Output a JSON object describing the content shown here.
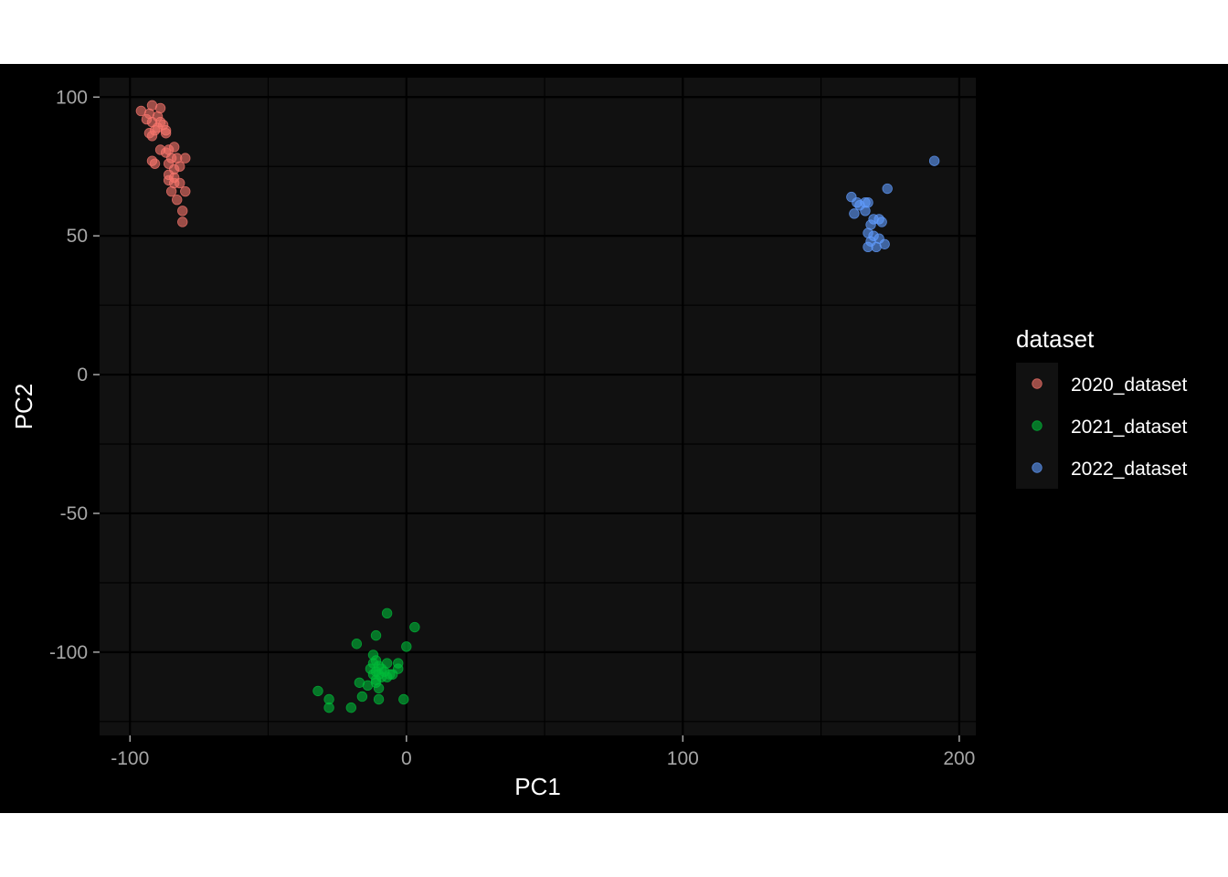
{
  "chart_data": {
    "type": "scatter",
    "title": "",
    "xlabel": "PC1",
    "ylabel": "PC2",
    "xlim": [
      -111,
      206
    ],
    "ylim": [
      -130,
      107
    ],
    "x_ticks": [
      -100,
      0,
      100,
      200
    ],
    "x_tick_labels": [
      "-100",
      "0",
      "100",
      "200"
    ],
    "y_ticks": [
      -100,
      -50,
      0,
      50,
      100
    ],
    "y_tick_labels": [
      "-100",
      "-50",
      "0",
      "50",
      "100"
    ],
    "grid": true,
    "background": "#111111",
    "legend": {
      "title": "dataset",
      "position": "right"
    },
    "series": [
      {
        "name": "2020_dataset",
        "color": "#f8766d",
        "points": [
          [
            -92,
            97
          ],
          [
            -89,
            96
          ],
          [
            -96,
            95
          ],
          [
            -93,
            94
          ],
          [
            -90,
            93
          ],
          [
            -94,
            92
          ],
          [
            -92,
            91
          ],
          [
            -89,
            91
          ],
          [
            -88,
            90
          ],
          [
            -90,
            89
          ],
          [
            -87,
            88
          ],
          [
            -91,
            88
          ],
          [
            -93,
            87
          ],
          [
            -87,
            87
          ],
          [
            -92,
            86
          ],
          [
            -89,
            81
          ],
          [
            -84,
            82
          ],
          [
            -86,
            81
          ],
          [
            -87,
            80
          ],
          [
            -85,
            78
          ],
          [
            -83,
            78
          ],
          [
            -80,
            78
          ],
          [
            -92,
            77
          ],
          [
            -91,
            76
          ],
          [
            -86,
            76
          ],
          [
            -82,
            75
          ],
          [
            -84,
            74
          ],
          [
            -86,
            72
          ],
          [
            -84,
            71
          ],
          [
            -86,
            70
          ],
          [
            -82,
            69
          ],
          [
            -84,
            69
          ],
          [
            -80,
            66
          ],
          [
            -85,
            66
          ],
          [
            -83,
            63
          ],
          [
            -81,
            59
          ],
          [
            -81,
            55
          ]
        ]
      },
      {
        "name": "2021_dataset",
        "color": "#00ba38",
        "points": [
          [
            -7,
            -86
          ],
          [
            3,
            -91
          ],
          [
            -11,
            -94
          ],
          [
            -18,
            -97
          ],
          [
            0,
            -98
          ],
          [
            -12,
            -101
          ],
          [
            -11,
            -103
          ],
          [
            -7,
            -104
          ],
          [
            -12,
            -104
          ],
          [
            -3,
            -104
          ],
          [
            -10,
            -105
          ],
          [
            -13,
            -106
          ],
          [
            -3,
            -106
          ],
          [
            -9,
            -106
          ],
          [
            -11,
            -107
          ],
          [
            -8,
            -107
          ],
          [
            -6,
            -108
          ],
          [
            -10,
            -108
          ],
          [
            -12,
            -108
          ],
          [
            -5,
            -108
          ],
          [
            -9,
            -109
          ],
          [
            -11,
            -110
          ],
          [
            -7,
            -109
          ],
          [
            -17,
            -111
          ],
          [
            -11,
            -111
          ],
          [
            -14,
            -112
          ],
          [
            -10,
            -113
          ],
          [
            -32,
            -114
          ],
          [
            -16,
            -116
          ],
          [
            -1,
            -117
          ],
          [
            -10,
            -117
          ],
          [
            -28,
            -117
          ],
          [
            -28,
            -120
          ],
          [
            -20,
            -120
          ]
        ]
      },
      {
        "name": "2022_dataset",
        "color": "#619cff",
        "points": [
          [
            191,
            77
          ],
          [
            174,
            67
          ],
          [
            161,
            64
          ],
          [
            167,
            62
          ],
          [
            163,
            62
          ],
          [
            166,
            62
          ],
          [
            164,
            61
          ],
          [
            166,
            59
          ],
          [
            162,
            58
          ],
          [
            171,
            56
          ],
          [
            169,
            56
          ],
          [
            172,
            55
          ],
          [
            168,
            54
          ],
          [
            167,
            51
          ],
          [
            169,
            50
          ],
          [
            171,
            49
          ],
          [
            168,
            48
          ],
          [
            173,
            47
          ],
          [
            170,
            46
          ],
          [
            167,
            46
          ]
        ]
      }
    ]
  }
}
